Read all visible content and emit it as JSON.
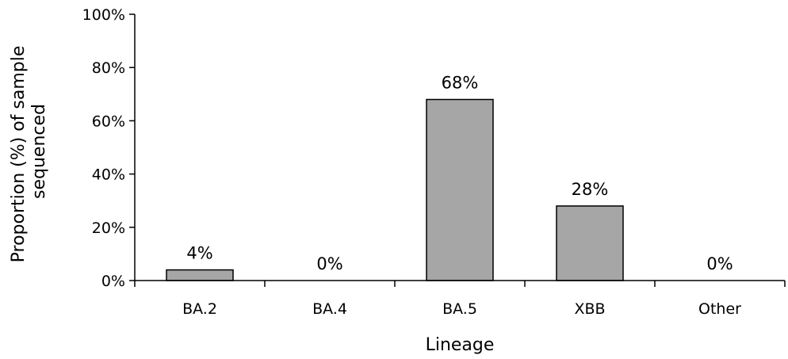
{
  "chart_data": {
    "type": "bar",
    "title": "",
    "xlabel": "Lineage",
    "ylabel_lines": [
      "Proportion (%) of sample",
      "sequenced"
    ],
    "categories": [
      "BA.2",
      "BA.4",
      "BA.5",
      "XBB",
      "Other"
    ],
    "values": [
      4,
      0,
      68,
      28,
      0
    ],
    "data_labels": [
      "4%",
      "0%",
      "68%",
      "28%",
      "0%"
    ],
    "ylim": [
      0,
      100
    ],
    "yticks": [
      0,
      20,
      40,
      60,
      80,
      100
    ],
    "ytick_labels": [
      "0%",
      "20%",
      "40%",
      "60%",
      "80%",
      "100%"
    ],
    "grid": false,
    "legend": "none",
    "bar_color": "#a6a6a6",
    "bar_edge_color": "#000000"
  }
}
